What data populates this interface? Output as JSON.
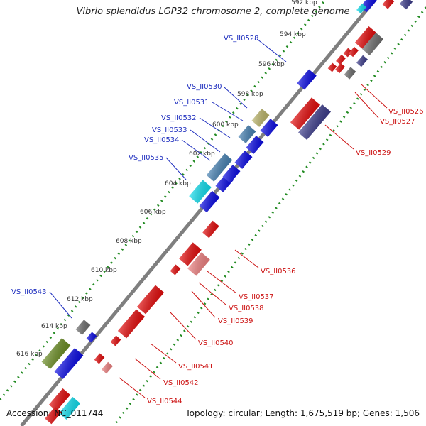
{
  "title": "Vibrio splendidus LGP32 chromosome 2, complete genome",
  "footer": {
    "accession": "Accession: NC_011744",
    "topology": "Topology: circular; Length: 1,675,519 bp; Genes: 1,506"
  },
  "ticks": [
    "592 kbp",
    "594 kbp",
    "596 kbp",
    "598 kbp",
    "600 kbp",
    "602 kbp",
    "604 kbp",
    "606 kbp",
    "608 kbp",
    "610 kbp",
    "612 kbp",
    "614 kbp",
    "616 kbp"
  ],
  "gene_labels_left": [
    "VS_II0528",
    "VS_II0530",
    "VS_II0531",
    "VS_II0532",
    "VS_II0533",
    "VS_II0534",
    "VS_II0535",
    "VS_II0543"
  ],
  "gene_labels_right": [
    "VS_II0526",
    "VS_II0527",
    "VS_II0529",
    "VS_II0536",
    "VS_II0537",
    "VS_II0538",
    "VS_II0539",
    "VS_II0540",
    "VS_II0541",
    "VS_II0542",
    "VS_II0544"
  ],
  "colors": {
    "backbone": "#7f7f7f",
    "dots": "#228b22",
    "left_label": "#1f2fbf",
    "right_label": "#cc1111",
    "gene_blue": "#0a0ae6",
    "gene_red": "#e60a0a",
    "gene_navy": "#3c3c8c",
    "gene_steel": "#4682b4",
    "gene_cyan": "#10e0f0",
    "gene_khaki": "#bdb76b",
    "gene_olive": "#6b8e23",
    "gene_pink": "#f08080",
    "gene_gray": "#6e6e6e"
  }
}
